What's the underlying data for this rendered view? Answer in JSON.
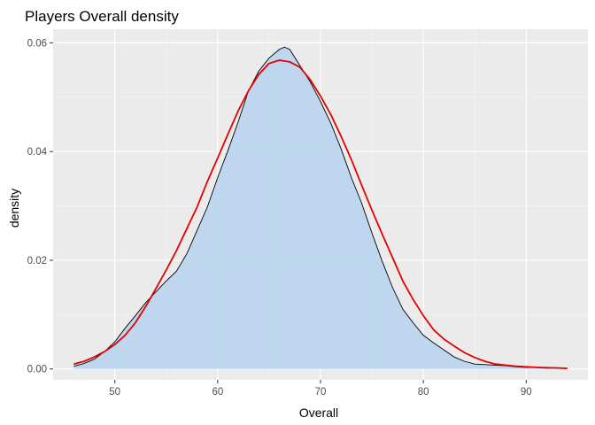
{
  "chart_data": {
    "type": "area",
    "title": "Players Overall density",
    "xlabel": "Overall",
    "ylabel": "density",
    "xlim": [
      44,
      96
    ],
    "ylim": [
      -0.002,
      0.0625
    ],
    "x_ticks": [
      50,
      60,
      70,
      80,
      90
    ],
    "y_ticks": [
      0.0,
      0.02,
      0.04,
      0.06
    ],
    "x_tick_labels": [
      "50",
      "60",
      "70",
      "80",
      "90"
    ],
    "y_tick_labels": [
      "0.00",
      "0.02",
      "0.04",
      "0.06"
    ],
    "grid": true,
    "series": [
      {
        "kind": "density-area",
        "x": [
          46,
          47,
          48,
          49,
          50,
          51,
          52,
          53,
          54,
          55,
          56,
          57,
          58,
          59,
          60,
          61,
          62,
          63,
          64,
          65,
          66,
          66.5,
          67,
          68,
          69,
          70,
          71,
          72,
          73,
          74,
          75,
          76,
          77,
          78,
          79,
          80,
          81,
          82,
          83,
          84,
          85,
          86,
          87,
          88,
          89,
          90,
          91,
          92,
          93,
          94
        ],
        "y": [
          0.0005,
          0.001,
          0.0018,
          0.0032,
          0.005,
          0.0075,
          0.0098,
          0.0122,
          0.0142,
          0.0162,
          0.018,
          0.0212,
          0.0255,
          0.0298,
          0.0352,
          0.0402,
          0.0455,
          0.0512,
          0.0548,
          0.0572,
          0.0588,
          0.0592,
          0.0588,
          0.0558,
          0.0528,
          0.0492,
          0.0452,
          0.0405,
          0.0352,
          0.0305,
          0.025,
          0.0198,
          0.015,
          0.011,
          0.0085,
          0.0062,
          0.0048,
          0.0035,
          0.0022,
          0.0014,
          0.0009,
          0.0008,
          0.0007,
          0.0006,
          0.0004,
          0.0003,
          0.0003,
          0.0003,
          0.0002,
          0.0001
        ],
        "color": "#bcd6ee",
        "line_color": "#000000"
      },
      {
        "kind": "normal-fit",
        "x": [
          46,
          47,
          48,
          49,
          50,
          51,
          52,
          53,
          54,
          55,
          56,
          57,
          58,
          59,
          60,
          61,
          62,
          63,
          64,
          65,
          66,
          67,
          68,
          69,
          70,
          71,
          72,
          73,
          74,
          75,
          76,
          77,
          78,
          79,
          80,
          81,
          82,
          83,
          84,
          85,
          86,
          87,
          88,
          89,
          90,
          91,
          92,
          93,
          94
        ],
        "y": [
          0.0009,
          0.0014,
          0.0022,
          0.0032,
          0.0045,
          0.0062,
          0.0085,
          0.0115,
          0.0148,
          0.0182,
          0.0218,
          0.0258,
          0.0298,
          0.0345,
          0.0388,
          0.0432,
          0.0475,
          0.0512,
          0.0542,
          0.0562,
          0.0568,
          0.0565,
          0.0555,
          0.0532,
          0.0502,
          0.0468,
          0.0428,
          0.0385,
          0.0338,
          0.0292,
          0.0248,
          0.0205,
          0.0162,
          0.0128,
          0.0098,
          0.0072,
          0.0055,
          0.0042,
          0.003,
          0.0021,
          0.0014,
          0.0009,
          0.0007,
          0.0005,
          0.0004,
          0.0003,
          0.0002,
          0.0002,
          0.0001
        ],
        "color": "#e60000"
      }
    ]
  }
}
